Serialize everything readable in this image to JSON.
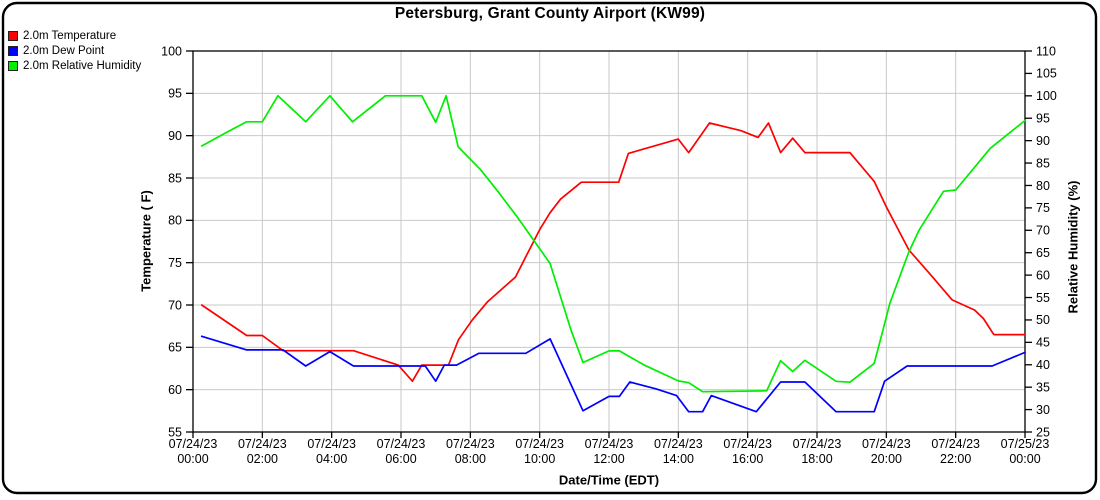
{
  "title": "Petersburg, Grant County Airport (KW99)",
  "legend": [
    {
      "label": "2.0m Temperature",
      "color": "#ff0000"
    },
    {
      "label": "2.0m Dew Point",
      "color": "#0000ff"
    },
    {
      "label": "2.0m Relative Humidity",
      "color": "#00ee00"
    }
  ],
  "axes": {
    "left": {
      "title": "Temperature ( F)"
    },
    "right": {
      "title": "Relative Humidity (%)"
    },
    "x": {
      "title": "Date/Time (EDT)"
    }
  },
  "chart_data": {
    "type": "line",
    "title": "Petersburg, Grant County Airport (KW99)",
    "xlabel": "Date/Time (EDT)",
    "ylabel_left": "Temperature ( F)",
    "ylabel_right": "Relative Humidity (%)",
    "x_unit": "hours_since_07/24/23_00:00_EDT",
    "xlim": [
      0,
      24
    ],
    "ylim_left": [
      55,
      100
    ],
    "ylim_right": [
      25,
      110
    ],
    "grid": true,
    "legend_position": "top-left",
    "yticks_left": [
      100,
      95,
      90,
      85,
      80,
      75,
      70,
      65,
      60,
      55
    ],
    "yticks_right": [
      110,
      105,
      100,
      95,
      90,
      85,
      80,
      75,
      70,
      65,
      60,
      55,
      50,
      45,
      40,
      35,
      30,
      25
    ],
    "x_ticks": [
      {
        "hour": 0,
        "date": "07/24/23",
        "time": "00:00"
      },
      {
        "hour": 2,
        "date": "07/24/23",
        "time": "02:00"
      },
      {
        "hour": 4,
        "date": "07/24/23",
        "time": "04:00"
      },
      {
        "hour": 6,
        "date": "07/24/23",
        "time": "06:00"
      },
      {
        "hour": 8,
        "date": "07/24/23",
        "time": "08:00"
      },
      {
        "hour": 10,
        "date": "07/24/23",
        "time": "10:00"
      },
      {
        "hour": 12,
        "date": "07/24/23",
        "time": "12:00"
      },
      {
        "hour": 14,
        "date": "07/24/23",
        "time": "14:00"
      },
      {
        "hour": 16,
        "date": "07/24/23",
        "time": "16:00"
      },
      {
        "hour": 18,
        "date": "07/24/23",
        "time": "18:00"
      },
      {
        "hour": 20,
        "date": "07/24/23",
        "time": "20:00"
      },
      {
        "hour": 22,
        "date": "07/24/23",
        "time": "22:00"
      },
      {
        "hour": 24,
        "date": "07/25/23",
        "time": "00:00"
      }
    ],
    "series": [
      {
        "name": "2.0m Temperature",
        "axis": "left",
        "color": "#ff0000",
        "unit": "F",
        "points": [
          [
            0.25,
            70.0
          ],
          [
            1.55,
            66.4
          ],
          [
            2.0,
            66.4
          ],
          [
            2.6,
            64.6
          ],
          [
            4.63,
            64.6
          ],
          [
            5.92,
            62.9
          ],
          [
            6.33,
            61.0
          ],
          [
            6.6,
            62.9
          ],
          [
            7.37,
            62.9
          ],
          [
            7.66,
            65.9
          ],
          [
            8.05,
            68.2
          ],
          [
            8.5,
            70.4
          ],
          [
            9.3,
            73.3
          ],
          [
            10.0,
            78.9
          ],
          [
            10.3,
            80.9
          ],
          [
            10.6,
            82.5
          ],
          [
            10.9,
            83.5
          ],
          [
            11.2,
            84.5
          ],
          [
            12.28,
            84.5
          ],
          [
            12.56,
            87.9
          ],
          [
            14.0,
            89.6
          ],
          [
            14.3,
            88.0
          ],
          [
            14.9,
            91.5
          ],
          [
            15.8,
            90.6
          ],
          [
            16.3,
            89.8
          ],
          [
            16.6,
            91.5
          ],
          [
            16.95,
            88.0
          ],
          [
            17.3,
            89.7
          ],
          [
            17.65,
            88.0
          ],
          [
            18.95,
            88.0
          ],
          [
            19.65,
            84.6
          ],
          [
            20.0,
            81.6
          ],
          [
            20.65,
            76.5
          ],
          [
            21.25,
            73.7
          ],
          [
            21.9,
            70.6
          ],
          [
            22.55,
            69.4
          ],
          [
            22.8,
            68.4
          ],
          [
            23.1,
            66.5
          ],
          [
            24.0,
            66.5
          ]
        ]
      },
      {
        "name": "2.0m Dew Point",
        "axis": "left",
        "color": "#0000ff",
        "unit": "F",
        "points": [
          [
            0.25,
            66.3
          ],
          [
            1.55,
            64.7
          ],
          [
            2.6,
            64.7
          ],
          [
            3.25,
            62.8
          ],
          [
            3.95,
            64.5
          ],
          [
            4.63,
            62.8
          ],
          [
            6.7,
            62.8
          ],
          [
            7.0,
            61.0
          ],
          [
            7.25,
            62.9
          ],
          [
            7.6,
            62.9
          ],
          [
            8.25,
            64.3
          ],
          [
            9.6,
            64.3
          ],
          [
            10.3,
            66.0
          ],
          [
            11.25,
            57.5
          ],
          [
            12.0,
            59.2
          ],
          [
            12.3,
            59.2
          ],
          [
            12.6,
            60.9
          ],
          [
            13.35,
            60.1
          ],
          [
            13.95,
            59.3
          ],
          [
            14.3,
            57.4
          ],
          [
            14.7,
            57.4
          ],
          [
            14.95,
            59.3
          ],
          [
            16.25,
            57.4
          ],
          [
            16.95,
            60.9
          ],
          [
            17.65,
            60.9
          ],
          [
            18.55,
            57.4
          ],
          [
            19.65,
            57.4
          ],
          [
            19.95,
            61.0
          ],
          [
            20.6,
            62.8
          ],
          [
            23.05,
            62.8
          ],
          [
            24.0,
            64.4
          ]
        ]
      },
      {
        "name": "2.0m Relative Humidity",
        "axis": "right",
        "color": "#00ee00",
        "unit": "%",
        "points": [
          [
            0.25,
            88.8
          ],
          [
            1.0,
            92.0
          ],
          [
            1.55,
            94.2
          ],
          [
            2.0,
            94.2
          ],
          [
            2.45,
            100.0
          ],
          [
            3.25,
            94.2
          ],
          [
            3.95,
            100.0
          ],
          [
            4.6,
            94.2
          ],
          [
            5.55,
            100.0
          ],
          [
            6.6,
            100.0
          ],
          [
            7.0,
            94.1
          ],
          [
            7.3,
            100.0
          ],
          [
            7.65,
            88.6
          ],
          [
            8.3,
            83.5
          ],
          [
            8.8,
            78.6
          ],
          [
            9.35,
            73.0
          ],
          [
            10.3,
            62.6
          ],
          [
            10.9,
            47.8
          ],
          [
            11.25,
            40.5
          ],
          [
            12.0,
            43.1
          ],
          [
            12.3,
            43.1
          ],
          [
            13.0,
            40.0
          ],
          [
            14.0,
            36.4
          ],
          [
            14.3,
            36.0
          ],
          [
            14.7,
            34.0
          ],
          [
            16.55,
            34.2
          ],
          [
            16.95,
            40.9
          ],
          [
            17.3,
            38.5
          ],
          [
            17.65,
            41.0
          ],
          [
            18.55,
            36.3
          ],
          [
            18.95,
            36.1
          ],
          [
            19.65,
            40.3
          ],
          [
            19.9,
            47.7
          ],
          [
            20.1,
            53.7
          ],
          [
            20.65,
            65.2
          ],
          [
            20.95,
            70.1
          ],
          [
            21.65,
            78.7
          ],
          [
            22.0,
            79.0
          ],
          [
            23.0,
            88.3
          ],
          [
            24.0,
            94.5
          ]
        ]
      }
    ]
  }
}
